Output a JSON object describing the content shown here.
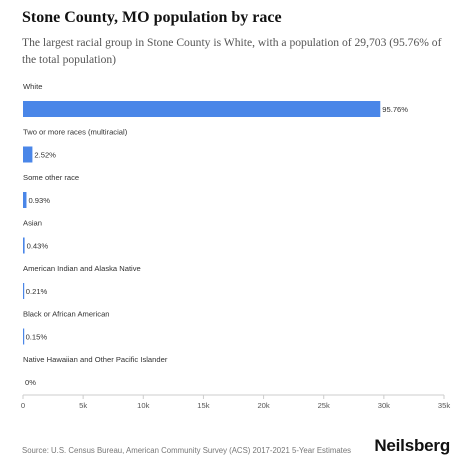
{
  "title": "Stone County, MO population by race",
  "subtitle": "The largest racial group in Stone County is White, with a population of 29,703 (95.76% of the total population)",
  "source": "Source: U.S. Census Bureau, American Community Survey (ACS) 2017-2021 5-Year Estimates",
  "brand": "Neilsberg",
  "colors": {
    "bar": "#4a86e8",
    "axis": "#cccccc",
    "text": "#222222",
    "label": "#333333"
  },
  "chart_data": {
    "type": "bar",
    "orientation": "horizontal",
    "categories": [
      "White",
      "Two or more races (multiracial)",
      "Some other race",
      "Asian",
      "American Indian and Alaska Native",
      "Black or African American",
      "Native Hawaiian and Other Pacific Islander"
    ],
    "values": [
      29703,
      782,
      288,
      133,
      65,
      47,
      0
    ],
    "data_labels": [
      "95.76%",
      "2.52%",
      "0.93%",
      "0.43%",
      "0.21%",
      "0.15%",
      "0%"
    ],
    "xlim": [
      0,
      35000
    ],
    "x_ticks": [
      0,
      5000,
      10000,
      15000,
      20000,
      25000,
      30000,
      35000
    ],
    "x_tick_labels": [
      "0",
      "5k",
      "10k",
      "15k",
      "20k",
      "25k",
      "30k",
      "35k"
    ],
    "grid": false,
    "legend": "none"
  }
}
